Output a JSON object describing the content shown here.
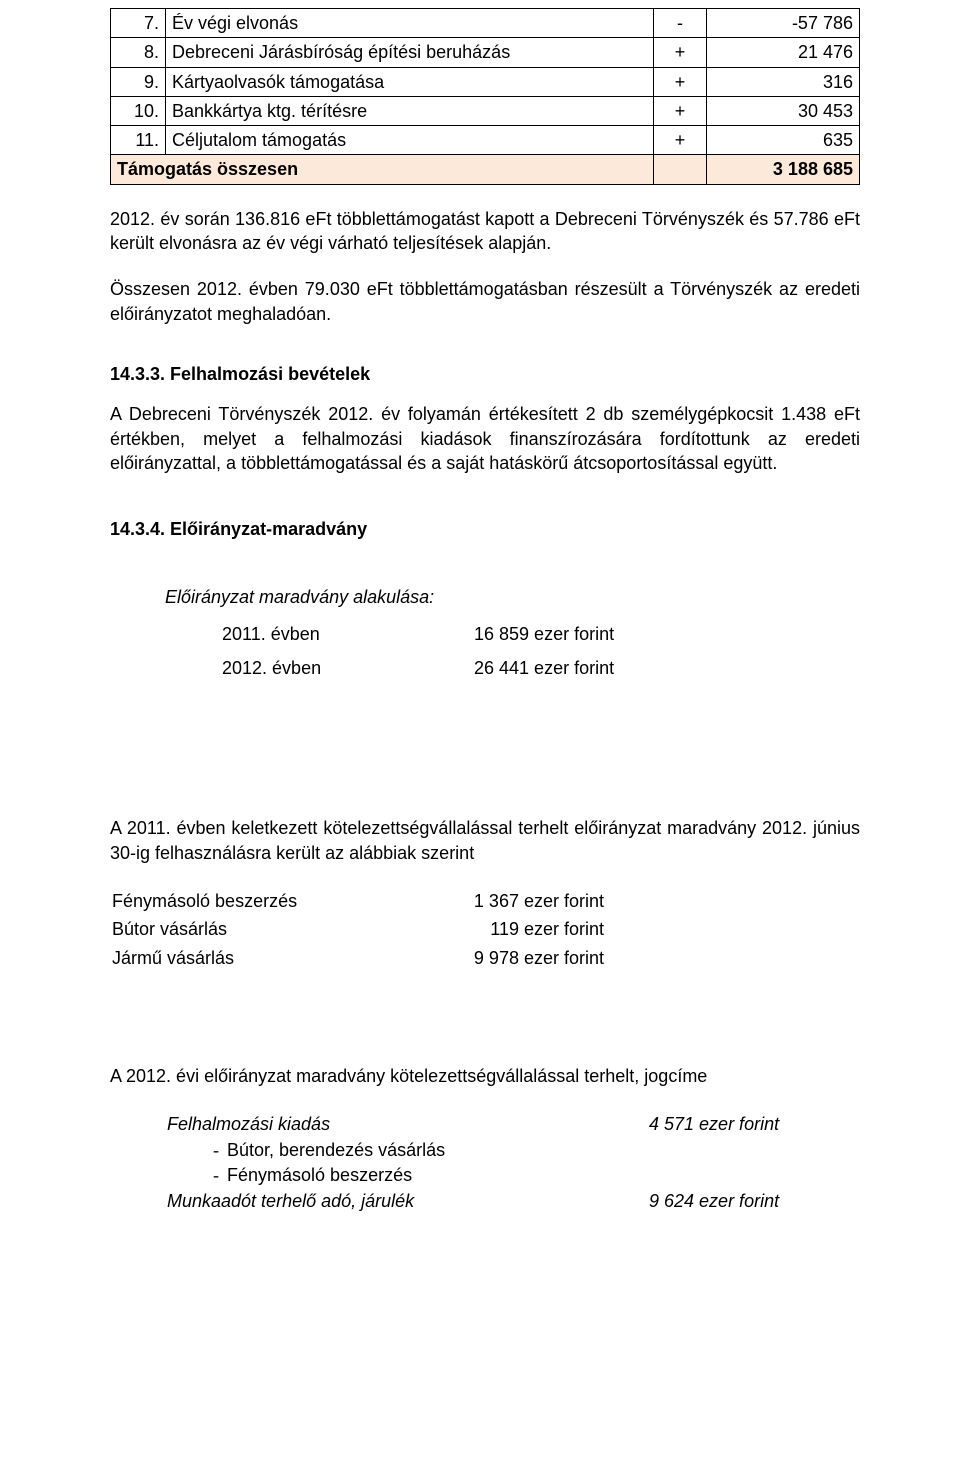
{
  "support_table": {
    "rows": [
      {
        "num": "7.",
        "desc": "Év végi elvonás",
        "sign": "-",
        "val": "-57 786"
      },
      {
        "num": "8.",
        "desc": "Debreceni Járásbíróság építési beruházás",
        "sign": "+",
        "val": "21 476"
      },
      {
        "num": "9.",
        "desc": "Kártyaolvasók támogatása",
        "sign": "+",
        "val": "316"
      },
      {
        "num": "10.",
        "desc": "Bankkártya ktg. térítésre",
        "sign": "+",
        "val": "30 453"
      },
      {
        "num": "11.",
        "desc": "Céljutalom támogatás",
        "sign": "+",
        "val": "635"
      }
    ],
    "total_label": "Támogatás összesen",
    "total_value": "3 188 685",
    "total_bg": "#fde9d9"
  },
  "p1": "2012. év során 136.816 eFt többlettámogatást kapott a Debreceni Törvényszék és 57.786 eFt került elvonásra az év végi várható teljesítések alapján.",
  "p2": "Összesen 2012. évben 79.030 eFt többlettámogatásban részesült a Törvényszék az eredeti előirányzatot meghaladóan.",
  "h1": "14.3.3. Felhalmozási bevételek",
  "p3": "A Debreceni Törvényszék 2012. év folyamán értékesített 2 db személygépkocsit 1.438 eFt értékben, melyet a felhalmozási kiadások finanszírozására fordítottunk az eredeti előirányzattal, a többlettámogatással és a saját hatáskörű átcsoportosítással együtt.",
  "h2": "14.3.4. Előirányzat-maradvány",
  "maradvany_title": "Előirányzat maradvány alakulása:",
  "yrs": [
    {
      "y": "2011. évben",
      "v": "16 859 ezer forint"
    },
    {
      "y": "2012. évben",
      "v": "26 441 ezer forint"
    }
  ],
  "p4": "A 2011. évben keletkezett kötelezettségvállalással terhelt előirányzat maradvány 2012. június 30-ig felhasználásra került az alábbiak szerint",
  "items": [
    {
      "label": "Fénymásoló beszerzés",
      "val": "1 367 ezer forint"
    },
    {
      "label": "Bútor vásárlás",
      "val": "119 ezer forint"
    },
    {
      "label": "Jármű vásárlás",
      "val": "9 978 ezer forint"
    }
  ],
  "p5": "A 2012. évi előirányzat maradvány kötelezettségvállalással terhelt, jogcíme",
  "jog": {
    "felh_label": "Felhalmozási kiadás",
    "felh_val": "4 571 ezer forint",
    "sub": [
      "Bútor, berendezés vásárlás",
      "Fénymásoló beszerzés"
    ],
    "munk_label": "Munkaadót terhelő adó, járulék",
    "munk_val": "9 624 ezer forint"
  }
}
